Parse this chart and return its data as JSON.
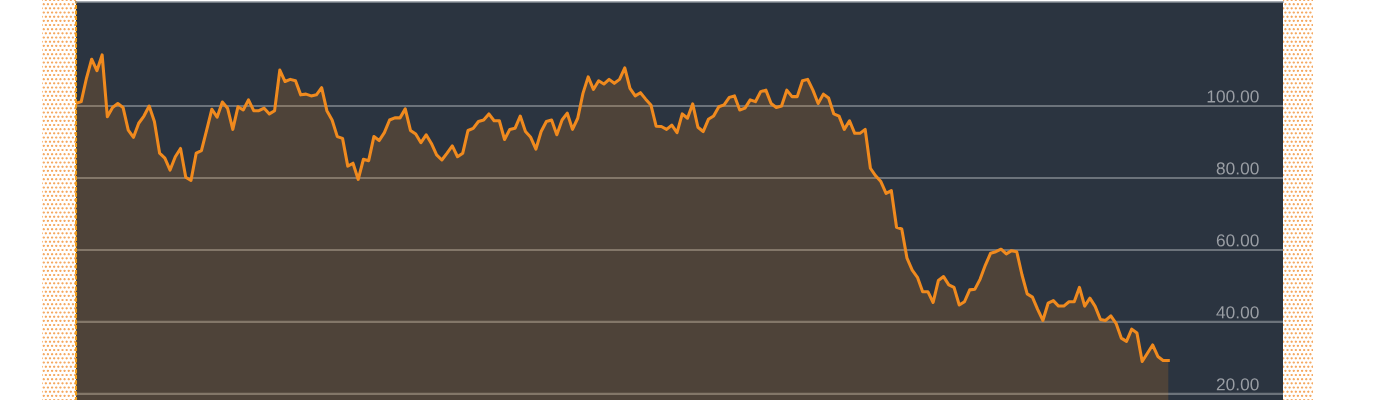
{
  "chart_data": {
    "type": "area",
    "tick_labels": "y",
    "grid": "y",
    "legend": false,
    "categories": [
      null,
      null,
      null,
      null,
      null,
      null,
      null,
      null,
      null,
      null,
      null,
      null,
      null,
      null,
      null,
      null,
      null,
      null,
      null,
      null,
      null,
      null,
      null,
      null,
      null,
      null,
      null,
      null,
      null,
      null,
      null,
      null,
      null,
      null,
      null,
      null,
      null,
      null,
      null,
      null,
      null,
      null,
      null,
      null,
      null,
      null,
      null,
      null,
      null,
      null,
      null,
      null,
      null,
      null,
      null,
      null,
      null,
      null,
      null,
      null,
      null,
      null,
      null,
      null,
      null,
      null,
      null,
      null,
      null,
      null,
      null,
      null,
      null,
      null,
      null,
      null,
      null,
      null,
      null,
      null,
      null,
      null,
      null,
      null,
      null,
      null,
      null,
      null,
      null,
      null,
      null,
      null,
      null,
      null,
      null,
      null,
      null,
      null,
      null,
      null,
      null,
      null,
      null,
      null,
      null,
      null,
      null,
      null,
      null,
      null,
      null,
      null,
      null,
      null,
      null,
      null,
      null,
      null,
      null,
      null,
      null,
      null,
      null,
      null,
      null,
      null,
      null,
      null,
      null,
      null,
      null,
      null,
      null,
      null,
      null,
      null,
      null,
      null,
      null,
      null,
      null,
      null,
      null,
      null,
      null,
      null,
      null,
      null,
      null,
      null,
      null,
      null,
      null,
      null,
      null,
      null,
      null,
      null,
      null,
      null,
      null,
      null,
      null,
      null,
      null,
      null,
      null,
      null,
      null,
      null,
      null,
      null,
      null,
      null,
      null,
      null,
      null,
      null,
      null,
      null,
      null,
      null,
      null,
      null,
      null,
      null,
      null,
      null,
      null,
      null,
      null,
      null,
      null,
      null,
      null,
      null,
      null,
      null,
      null,
      null,
      null,
      null,
      null,
      null,
      null,
      null,
      null,
      null,
      null,
      null
    ],
    "ylim": [
      18.3,
      128.9
    ],
    "yticks": [
      {
        "value": 20,
        "label": "20.00"
      },
      {
        "value": 40,
        "label": "40.00"
      },
      {
        "value": 60,
        "label": "60.00"
      },
      {
        "value": 80,
        "label": "80.00"
      },
      {
        "value": 100,
        "label": "100.00"
      }
    ],
    "series": [
      {
        "color": "#f08a1e",
        "values": [
          100.7,
          101.2,
          107.7,
          113,
          109.8,
          114.2,
          97,
          99.6,
          100.7,
          99.6,
          93.3,
          91.3,
          95.2,
          97.2,
          100,
          95.7,
          86.9,
          85.5,
          82.2,
          85.9,
          88.2,
          80.2,
          79.3,
          86.9,
          87.6,
          93.3,
          99.1,
          96.9,
          101.1,
          99.4,
          93.5,
          99.8,
          98.9,
          101.7,
          98.7,
          98.7,
          99.4,
          97.8,
          98.7,
          110,
          106.8,
          107.4,
          107,
          103.1,
          103.3,
          102.8,
          103.1,
          105.1,
          98.7,
          96.1,
          91.5,
          91,
          83.3,
          84.1,
          79.6,
          85.2,
          84.8,
          91.5,
          90.4,
          92.6,
          96.1,
          96.7,
          96.7,
          99.2,
          93.2,
          92.2,
          89.8,
          92,
          89.6,
          86.4,
          85,
          86.9,
          88.9,
          85.9,
          86.9,
          93.2,
          93.8,
          95.7,
          96.1,
          97.8,
          95.9,
          95.9,
          90.7,
          93.5,
          93.8,
          97.2,
          92.9,
          91.3,
          88,
          92.9,
          95.7,
          96.1,
          92,
          96.1,
          98,
          93.5,
          96.6,
          103.5,
          108.1,
          104.6,
          107,
          106.1,
          107.4,
          106.3,
          107.4,
          110.6,
          104.9,
          102.8,
          103.7,
          101.9,
          100.3,
          94.4,
          94.3,
          93.5,
          94.7,
          92.6,
          97.8,
          96.6,
          100.6,
          94.1,
          92.9,
          96.3,
          97.2,
          99.8,
          100.3,
          102.4,
          102.8,
          98.9,
          99.4,
          101.7,
          101.2,
          104,
          104.4,
          100.7,
          99.6,
          100,
          104.4,
          102.6,
          102.6,
          107,
          107.4,
          104.4,
          100.7,
          103.3,
          102.2,
          97.8,
          97.2,
          93.5,
          95.9,
          92.4,
          92.4,
          93.5,
          82.7,
          80.6,
          79,
          75.7,
          76.5,
          66.3,
          65.8,
          57.7,
          54.4,
          52.4,
          48.4,
          48.4,
          45.4,
          51.5,
          52.6,
          50.3,
          49.6,
          44.7,
          45.6,
          48.9,
          49.1,
          51.9,
          55.8,
          59.1,
          59.5,
          60.2,
          58.9,
          59.8,
          59.5,
          53.1,
          47.8,
          46.9,
          43.5,
          40.4,
          45.2,
          45.9,
          44.4,
          44.4,
          45.6,
          45.6,
          49.6,
          44.4,
          46.6,
          44.3,
          40.7,
          40.4,
          41.7,
          39.6,
          35.5,
          34.6,
          38,
          36.9,
          29,
          31.3,
          33.6,
          30.4,
          29.3,
          29.3
        ]
      }
    ]
  }
}
